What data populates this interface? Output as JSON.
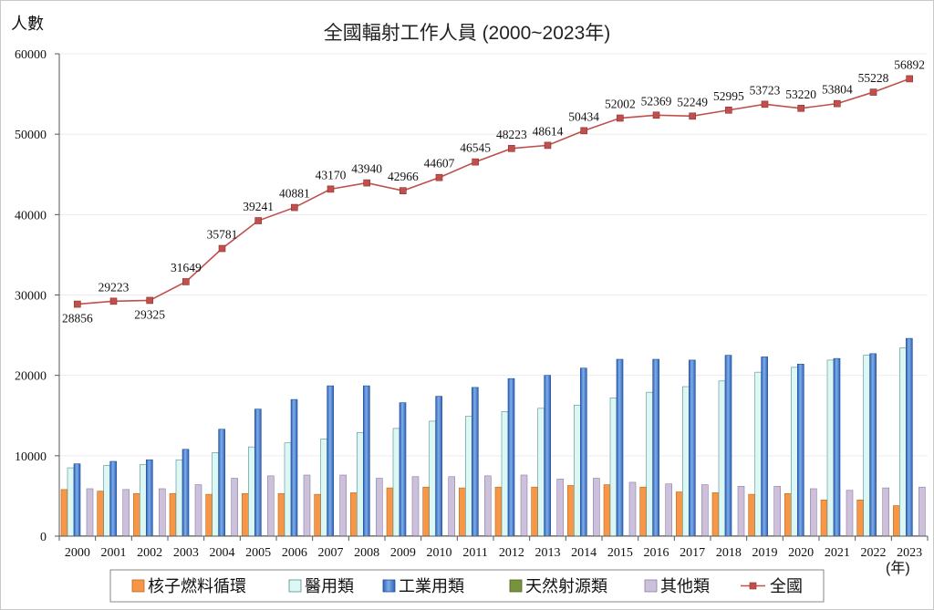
{
  "chart_data": {
    "type": "bar",
    "title": "全國輻射工作人員 (2000~2023年)",
    "ylabel": "人數",
    "xunit": "(年)",
    "ylim": [
      0,
      60000
    ],
    "yticks": [
      0,
      10000,
      20000,
      30000,
      40000,
      50000,
      60000
    ],
    "categories": [
      "2000",
      "2001",
      "2002",
      "2003",
      "2004",
      "2005",
      "2006",
      "2007",
      "2008",
      "2009",
      "2010",
      "2011",
      "2012",
      "2013",
      "2014",
      "2015",
      "2016",
      "2017",
      "2018",
      "2019",
      "2020",
      "2021",
      "2022",
      "2023"
    ],
    "legend_position": "bottom",
    "series": [
      {
        "name": "核子燃料循環",
        "type": "bar",
        "color": "#F79646",
        "values": [
          5800,
          5600,
          5300,
          5300,
          5200,
          5300,
          5300,
          5200,
          5400,
          6000,
          6100,
          6000,
          6100,
          6100,
          6300,
          6400,
          6100,
          5500,
          5400,
          5200,
          5300,
          4500,
          4500,
          3800
        ]
      },
      {
        "name": "醫用類",
        "type": "bar",
        "color": "#DDF7F5",
        "values": [
          8500,
          8800,
          8900,
          9500,
          10400,
          11100,
          11600,
          12100,
          12900,
          13400,
          14300,
          14900,
          15500,
          15900,
          16300,
          17200,
          17900,
          18600,
          19300,
          20400,
          21000,
          21900,
          22500,
          23400
        ]
      },
      {
        "name": "工業用類",
        "type": "bar",
        "color": "#4A7FD0",
        "values": [
          9000,
          9300,
          9500,
          10800,
          13300,
          15800,
          17000,
          18700,
          18700,
          16600,
          17400,
          18500,
          19600,
          20000,
          20900,
          22000,
          22000,
          21900,
          22500,
          22300,
          21400,
          22100,
          22700,
          24600
        ]
      },
      {
        "name": "天然射源類",
        "type": "bar",
        "color": "#77933C",
        "values": [
          50,
          50,
          50,
          50,
          50,
          50,
          50,
          50,
          50,
          50,
          50,
          50,
          50,
          50,
          50,
          50,
          50,
          50,
          50,
          50,
          50,
          50,
          50,
          50
        ]
      },
      {
        "name": "其他類",
        "type": "bar",
        "color": "#CCC0DA",
        "values": [
          5900,
          5800,
          5900,
          6400,
          7200,
          7500,
          7600,
          7600,
          7200,
          7400,
          7400,
          7500,
          7600,
          7100,
          7200,
          6700,
          6500,
          6400,
          6200,
          6200,
          5900,
          5700,
          6000,
          6100
        ]
      },
      {
        "name": "全國",
        "type": "line",
        "color": "#C0504D",
        "values": [
          28856,
          29223,
          29325,
          31649,
          35781,
          39241,
          40881,
          43170,
          43940,
          42966,
          44607,
          46545,
          48223,
          48614,
          50434,
          52002,
          52369,
          52249,
          52995,
          53723,
          53220,
          53804,
          55228,
          56892
        ]
      }
    ]
  }
}
